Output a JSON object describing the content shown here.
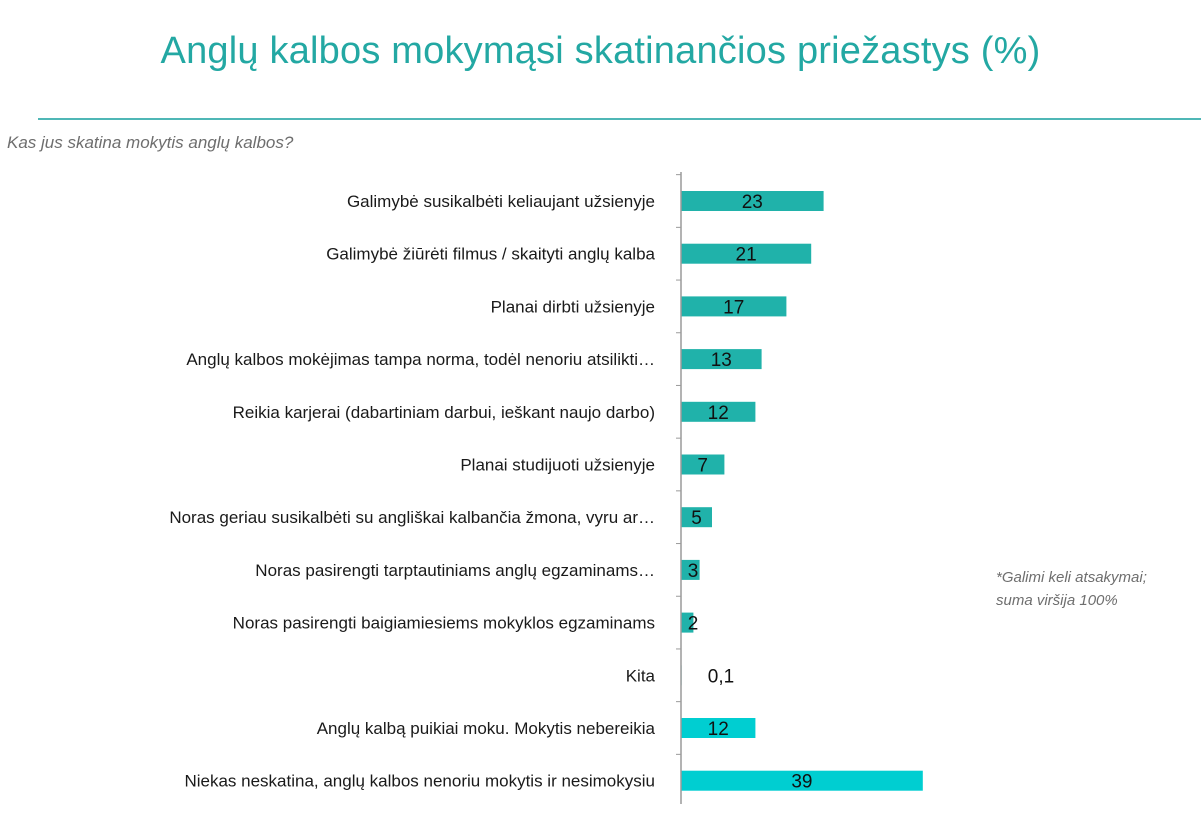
{
  "title": "Anglų kalbos mokymąsi skatinančios priežastys (%)",
  "subtitle": "Kas jus skatina mokytis anglų kalbos?",
  "note_lines": [
    "*Galimi keli atsakymai;",
    "suma viršija 100%"
  ],
  "colors": {
    "title": "#23a8a3",
    "bar": "#20b2aa",
    "bar_highlight": "#00ced1",
    "rule": "#4fb7b6"
  },
  "chart_data": {
    "type": "bar",
    "orientation": "horizontal",
    "title": "Anglų kalbos mokymąsi skatinančios priežastys (%)",
    "subtitle": "Kas jus skatina mokytis anglų kalbos?",
    "xlabel": "",
    "ylabel": "",
    "xlim": [
      0,
      40
    ],
    "grid": false,
    "legend": "none",
    "categories": [
      "Galimybė susikalbėti keliaujant užsienyje",
      "Galimybė žiūrėti filmus / skaityti anglų kalba",
      "Planai dirbti užsienyje",
      "Anglų kalbos mokėjimas tampa norma, todėl nenoriu atsilikti…",
      "Reikia karjerai (dabartiniam darbui, ieškant naujo darbo)",
      "Planai studijuoti užsienyje",
      "Noras geriau susikalbėti su angliškai kalbančia žmona, vyru ar…",
      "Noras pasirengti tarptautiniams anglų egzaminams…",
      "Noras pasirengti baigiamiesiems mokyklos egzaminams",
      "Kita",
      "Anglų kalbą puikiai moku. Mokytis nebereikia",
      "Niekas neskatina, anglų kalbos nenoriu mokytis ir nesimokysiu"
    ],
    "values": [
      23,
      21,
      17,
      13,
      12,
      7,
      5,
      3,
      2,
      0.1,
      12,
      39
    ],
    "value_labels": [
      "23",
      "21",
      "17",
      "13",
      "12",
      "7",
      "5",
      "3",
      "2",
      "0,1",
      "12",
      "39"
    ],
    "highlight": [
      false,
      false,
      false,
      false,
      false,
      false,
      false,
      false,
      false,
      false,
      true,
      true
    ]
  }
}
